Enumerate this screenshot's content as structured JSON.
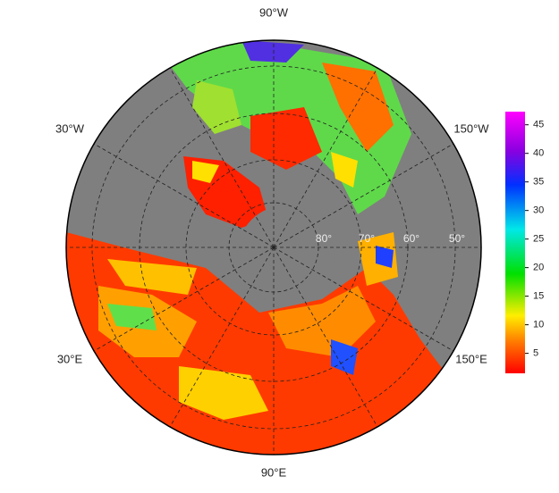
{
  "map": {
    "longitude_labels": [
      "90°W",
      "30°W",
      "150°W",
      "30°E",
      "150°E",
      "90°E"
    ],
    "latitude_labels": [
      "80°",
      "70°",
      "60°",
      "50°"
    ]
  },
  "colorbar": {
    "range": [
      1.5,
      47.3
    ],
    "ticks": [
      5,
      10,
      15,
      20,
      25,
      30,
      35,
      40,
      45
    ]
  }
}
